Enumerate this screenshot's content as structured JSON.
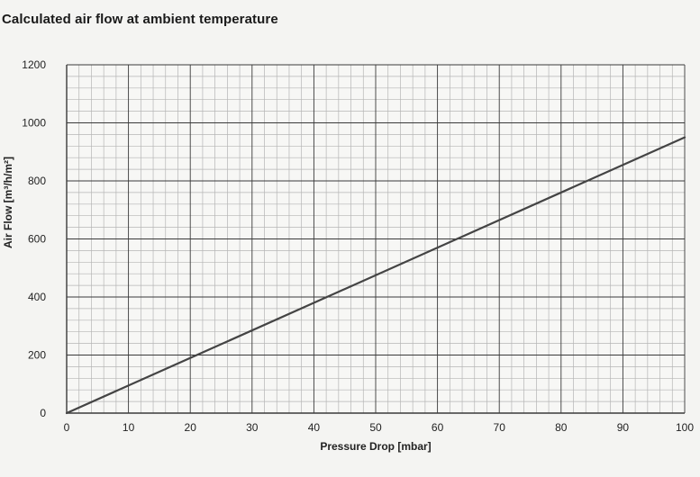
{
  "chart_data": {
    "type": "line",
    "title": "Calculated air flow at ambient temperature",
    "xlabel": "Pressure Drop [mbar]",
    "ylabel": "Air Flow [m³/h/m²]",
    "xlim": [
      0,
      100
    ],
    "ylim": [
      0,
      1200
    ],
    "xticks": [
      0,
      10,
      20,
      30,
      40,
      50,
      60,
      70,
      80,
      90,
      100
    ],
    "yticks": [
      0,
      200,
      400,
      600,
      800,
      1000,
      1200
    ],
    "grid": true,
    "series": [
      {
        "x": [
          0,
          100
        ],
        "y": [
          0,
          950
        ]
      }
    ],
    "colors": {
      "line": "#444444",
      "major_grid": "#3a3a3a",
      "minor_grid": "#b5b5b5"
    }
  }
}
